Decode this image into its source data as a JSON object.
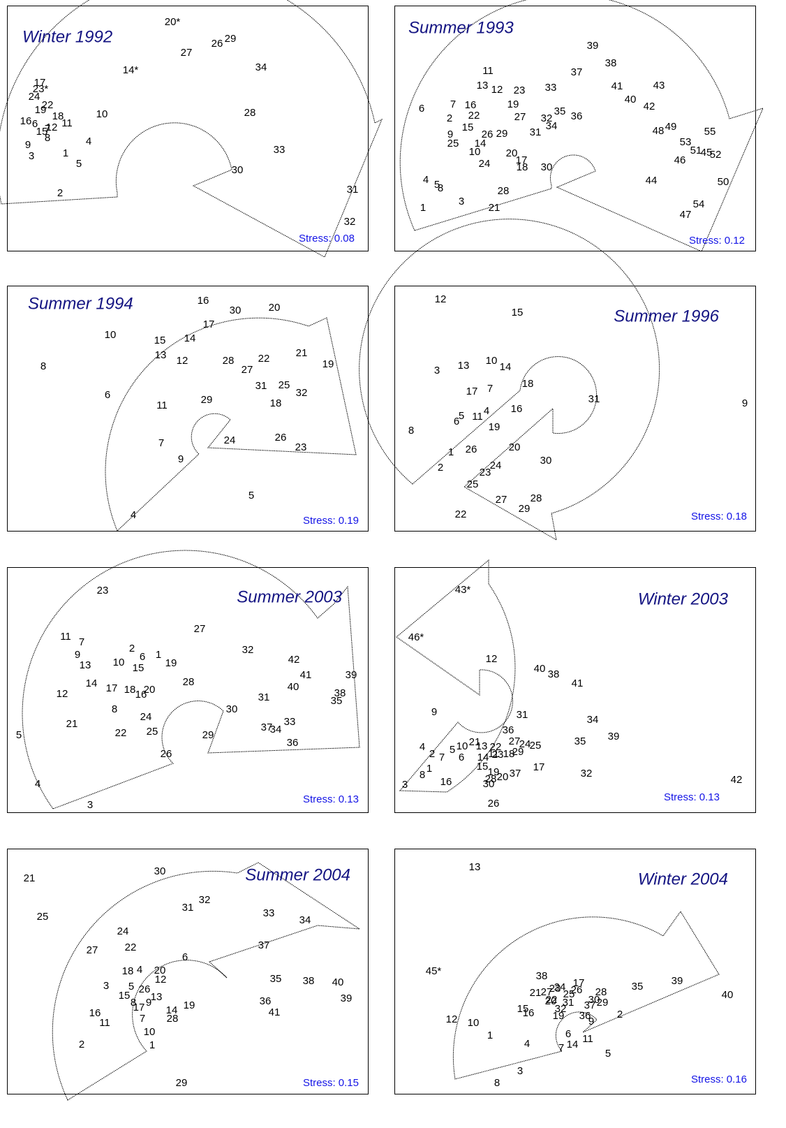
{
  "chart_data": [
    {
      "type": "scatter",
      "title": "Winter 1992",
      "stress": "Stress: 0.08",
      "xlim": [
        0,
        517
      ],
      "ylim": [
        351,
        0
      ],
      "labels": [
        "20*",
        "26",
        "29",
        "27",
        "14*",
        "34",
        "17",
        "23*",
        "24",
        "22",
        "19",
        "10",
        "28",
        "18",
        "16",
        "6",
        "11",
        "7",
        "12",
        "15",
        "8",
        "4",
        "9",
        "33",
        "1",
        "3",
        "5",
        "30",
        "2",
        "31",
        "32"
      ],
      "x": [
        237,
        301,
        320,
        257,
        177,
        364,
        47,
        48,
        39,
        58,
        48,
        136,
        348,
        73,
        27,
        40,
        86,
        58,
        64,
        50,
        58,
        117,
        30,
        390,
        84,
        35,
        103,
        330,
        76,
        495,
        491
      ],
      "y": [
        24,
        55,
        48,
        68,
        93,
        89,
        111,
        120,
        131,
        143,
        150,
        156,
        154,
        159,
        166,
        170,
        169,
        177,
        175,
        181,
        190,
        195,
        200,
        207,
        212,
        216,
        227,
        236,
        269,
        264,
        310
      ]
    },
    {
      "type": "scatter",
      "title": "Summer 1993",
      "stress": "Stress: 0.12",
      "xlim": [
        0,
        517
      ],
      "ylim": [
        351,
        0
      ],
      "labels": [
        "39",
        "38",
        "11",
        "37",
        "13",
        "12",
        "23",
        "33",
        "41",
        "43",
        "40",
        "42",
        "7",
        "16",
        "19",
        "6",
        "22",
        "2",
        "27",
        "32",
        "35",
        "36",
        "34",
        "15",
        "31",
        "9",
        "26",
        "29",
        "48",
        "49",
        "55",
        "25",
        "14",
        "53",
        "51",
        "45",
        "52",
        "10",
        "20",
        "17",
        "46",
        "24",
        "18",
        "30",
        "44",
        "4",
        "50",
        "5",
        "8",
        "28",
        "3",
        "54",
        "21",
        "1",
        "47"
      ],
      "x": [
        284,
        310,
        134,
        261,
        126,
        147,
        179,
        224,
        319,
        379,
        338,
        365,
        84,
        109,
        170,
        39,
        114,
        79,
        180,
        218,
        237,
        261,
        225,
        105,
        202,
        80,
        133,
        154,
        378,
        396,
        452,
        84,
        123,
        417,
        432,
        447,
        460,
        115,
        168,
        182,
        409,
        129,
        183,
        218,
        368,
        45,
        471,
        61,
        66,
        156,
        96,
        436,
        143,
        41,
        417
      ],
      "y": [
        58,
        83,
        94,
        96,
        115,
        121,
        122,
        118,
        116,
        115,
        135,
        145,
        142,
        143,
        142,
        148,
        158,
        162,
        160,
        162,
        152,
        159,
        173,
        175,
        182,
        185,
        185,
        184,
        180,
        174,
        181,
        198,
        198,
        196,
        208,
        211,
        214,
        210,
        212,
        222,
        222,
        227,
        232,
        232,
        251,
        250,
        253,
        257,
        262,
        266,
        281,
        285,
        290,
        290,
        300
      ]
    },
    {
      "type": "scatter",
      "title": "Summer 1994",
      "stress": "Stress: 0.19",
      "xlim": [
        0,
        517
      ],
      "ylim": [
        351,
        0
      ],
      "labels": [
        "16",
        "30",
        "20",
        "17",
        "10",
        "15",
        "14",
        "21",
        "13",
        "12",
        "28",
        "22",
        "27",
        "19",
        "8",
        "6",
        "31",
        "25",
        "32",
        "11",
        "29",
        "18",
        "24",
        "26",
        "23",
        "7",
        "9",
        "5",
        "4"
      ],
      "x": [
        281,
        327,
        383,
        289,
        148,
        219,
        262,
        422,
        220,
        251,
        317,
        368,
        344,
        460,
        52,
        144,
        364,
        397,
        422,
        222,
        286,
        385,
        319,
        392,
        421,
        221,
        249,
        350,
        181
      ],
      "y": [
        22,
        36,
        32,
        56,
        71,
        79,
        76,
        97,
        100,
        108,
        108,
        105,
        121,
        113,
        116,
        157,
        144,
        143,
        154,
        172,
        164,
        169,
        222,
        218,
        232,
        226,
        249,
        301,
        329
      ]
    },
    {
      "type": "scatter",
      "title": "Summer 1996",
      "stress": "Stress: 0.18",
      "xlim": [
        0,
        517
      ],
      "ylim": [
        351,
        0
      ],
      "labels": [
        "12",
        "15",
        "3",
        "13",
        "10",
        "14",
        "18",
        "17",
        "7",
        "31",
        "9",
        "5",
        "6",
        "11",
        "4",
        "16",
        "19",
        "8",
        "1",
        "26",
        "20",
        "30",
        "24",
        "23",
        "2",
        "25",
        "27",
        "28",
        "29",
        "22"
      ],
      "x": [
        66,
        176,
        61,
        99,
        139,
        159,
        191,
        111,
        137,
        286,
        502,
        96,
        89,
        119,
        132,
        175,
        143,
        24,
        81,
        110,
        172,
        217,
        145,
        130,
        66,
        112,
        153,
        203,
        186,
        95
      ],
      "y": [
        20,
        39,
        122,
        115,
        108,
        117,
        141,
        152,
        148,
        163,
        169,
        187,
        195,
        188,
        180,
        177,
        203,
        208,
        239,
        235,
        232,
        251,
        258,
        268,
        261,
        285,
        307,
        305,
        320,
        328
      ]
    },
    {
      "type": "scatter",
      "title": "Summer 2003",
      "stress": "Stress: 0.13",
      "xlim": [
        0,
        517
      ],
      "ylim": [
        351,
        0
      ],
      "labels": [
        "23",
        "27",
        "11",
        "7",
        "2",
        "6",
        "1",
        "32",
        "9",
        "10",
        "15",
        "19",
        "13",
        "42",
        "41",
        "39",
        "14",
        "28",
        "17",
        "18",
        "16",
        "20",
        "40",
        "38",
        "35",
        "12",
        "31",
        "8",
        "30",
        "24",
        "21",
        "37",
        "34",
        "33",
        "22",
        "25",
        "29",
        "5",
        "36",
        "26",
        "4",
        "3"
      ],
      "x": [
        137,
        276,
        84,
        107,
        179,
        194,
        217,
        345,
        101,
        160,
        188,
        235,
        112,
        411,
        428,
        493,
        121,
        260,
        150,
        176,
        192,
        204,
        410,
        477,
        472,
        79,
        368,
        154,
        322,
        199,
        93,
        372,
        385,
        405,
        163,
        208,
        288,
        17,
        409,
        228,
        44,
        119
      ],
      "y": [
        34,
        89,
        100,
        108,
        117,
        129,
        126,
        119,
        126,
        137,
        145,
        138,
        141,
        133,
        155,
        155,
        167,
        165,
        174,
        176,
        183,
        176,
        172,
        181,
        192,
        182,
        187,
        204,
        204,
        215,
        225,
        230,
        233,
        222,
        238,
        236,
        241,
        241,
        252,
        268,
        311,
        341
      ]
    },
    {
      "type": "scatter",
      "title": "Winter 2003",
      "stress": "Stress: 0.13",
      "xlim": [
        0,
        517
      ],
      "ylim": [
        351,
        0
      ],
      "labels": [
        "43*",
        "46*",
        "12",
        "40",
        "38",
        "41",
        "9",
        "31",
        "34",
        "36",
        "39",
        "35",
        "27",
        "24",
        "25",
        "21",
        "13",
        "22",
        "4",
        "5",
        "10",
        "2",
        "7",
        "6",
        "11",
        "23",
        "18",
        "29",
        "14",
        "15",
        "1",
        "17",
        "32",
        "8",
        "19",
        "20",
        "37",
        "28",
        "16",
        "3",
        "30",
        "42",
        "26"
      ],
      "x": [
        98,
        31,
        139,
        208,
        228,
        262,
        57,
        183,
        284,
        163,
        314,
        266,
        172,
        187,
        202,
        115,
        125,
        145,
        40,
        83,
        97,
        54,
        68,
        96,
        142,
        148,
        164,
        177,
        127,
        126,
        50,
        207,
        275,
        40,
        142,
        155,
        173,
        138,
        74,
        15,
        135,
        490,
        142
      ],
      "y": [
        33,
        101,
        132,
        146,
        154,
        167,
        208,
        212,
        219,
        234,
        243,
        250,
        250,
        254,
        256,
        251,
        257,
        258,
        258,
        262,
        257,
        268,
        273,
        273,
        268,
        269,
        268,
        265,
        273,
        286,
        289,
        287,
        296,
        298,
        294,
        301,
        296,
        304,
        308,
        312,
        311,
        305,
        339
      ]
    },
    {
      "type": "scatter",
      "title": "Summer 2004",
      "stress": "Stress: 0.15",
      "xlim": [
        0,
        517
      ],
      "ylim": [
        351,
        0
      ],
      "labels": [
        "30",
        "21",
        "31",
        "32",
        "33",
        "34",
        "25",
        "24",
        "22",
        "37",
        "27",
        "6",
        "18",
        "4",
        "20",
        "12",
        "35",
        "38",
        "40",
        "3",
        "5",
        "26",
        "15",
        "13",
        "39",
        "8",
        "9",
        "17",
        "36",
        "19",
        "14",
        "41",
        "16",
        "28",
        "7",
        "11",
        "10",
        "1",
        "2",
        "29"
      ],
      "x": [
        219,
        32,
        259,
        283,
        375,
        427,
        51,
        166,
        177,
        368,
        122,
        255,
        173,
        190,
        219,
        220,
        385,
        432,
        474,
        142,
        178,
        197,
        168,
        214,
        486,
        181,
        203,
        189,
        370,
        261,
        236,
        383,
        126,
        237,
        194,
        140,
        204,
        208,
        107,
        250
      ],
      "y": [
        33,
        43,
        85,
        74,
        93,
        103,
        98,
        119,
        142,
        139,
        146,
        156,
        176,
        174,
        175,
        188,
        187,
        190,
        192,
        197,
        198,
        202,
        211,
        213,
        215,
        221,
        221,
        228,
        219,
        225,
        232,
        235,
        236,
        244,
        244,
        250,
        263,
        282,
        281,
        336
      ]
    },
    {
      "type": "scatter",
      "title": "Winter 2004",
      "stress": "Stress: 0.16",
      "xlim": [
        0,
        517
      ],
      "ylim": [
        351,
        0
      ],
      "labels": [
        "13",
        "45*",
        "38",
        "17",
        "21",
        "27",
        "23",
        "24",
        "26",
        "25",
        "28",
        "35",
        "39",
        "40",
        "22",
        "20",
        "31",
        "30",
        "29",
        "37",
        "15",
        "16",
        "32",
        "19",
        "36",
        "9",
        "2",
        "12",
        "10",
        "1",
        "6",
        "11",
        "14",
        "7",
        "4",
        "5",
        "3",
        "8"
      ],
      "x": [
        115,
        56,
        211,
        264,
        202,
        218,
        230,
        237,
        261,
        250,
        296,
        348,
        405,
        477,
        225,
        224,
        249,
        286,
        298,
        280,
        184,
        192,
        238,
        235,
        273,
        282,
        323,
        82,
        113,
        137,
        249,
        277,
        255,
        239,
        190,
        306,
        180,
        147
      ],
      "y": [
        27,
        176,
        183,
        193,
        207,
        206,
        201,
        199,
        203,
        209,
        206,
        198,
        190,
        210,
        217,
        219,
        221,
        217,
        221,
        225,
        230,
        236,
        230,
        240,
        240,
        248,
        238,
        245,
        250,
        268,
        266,
        273,
        281,
        286,
        280,
        294,
        319,
        336
      ]
    }
  ]
}
